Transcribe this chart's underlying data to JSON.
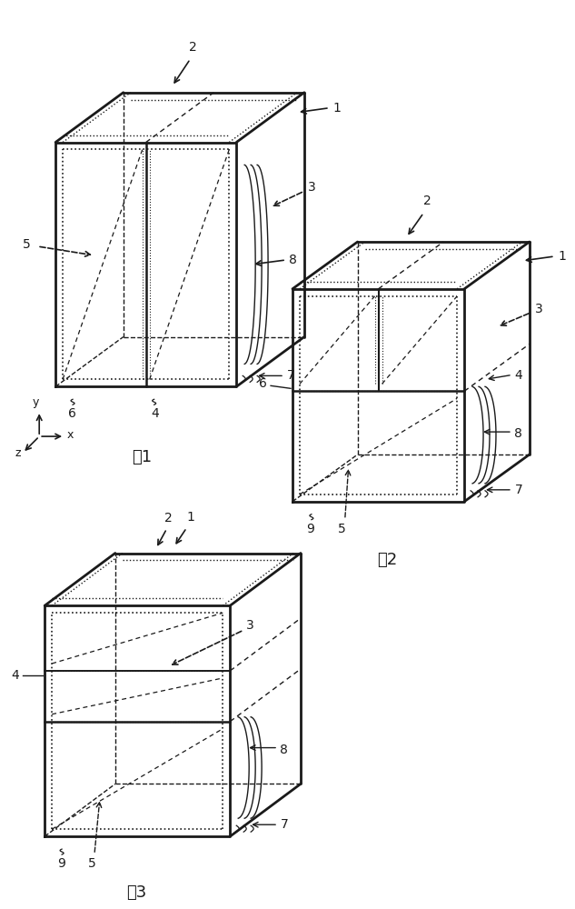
{
  "bg_color": "#ffffff",
  "line_color": "#1a1a1a",
  "title1": "图1",
  "title2": "图2",
  "title3": "图3"
}
